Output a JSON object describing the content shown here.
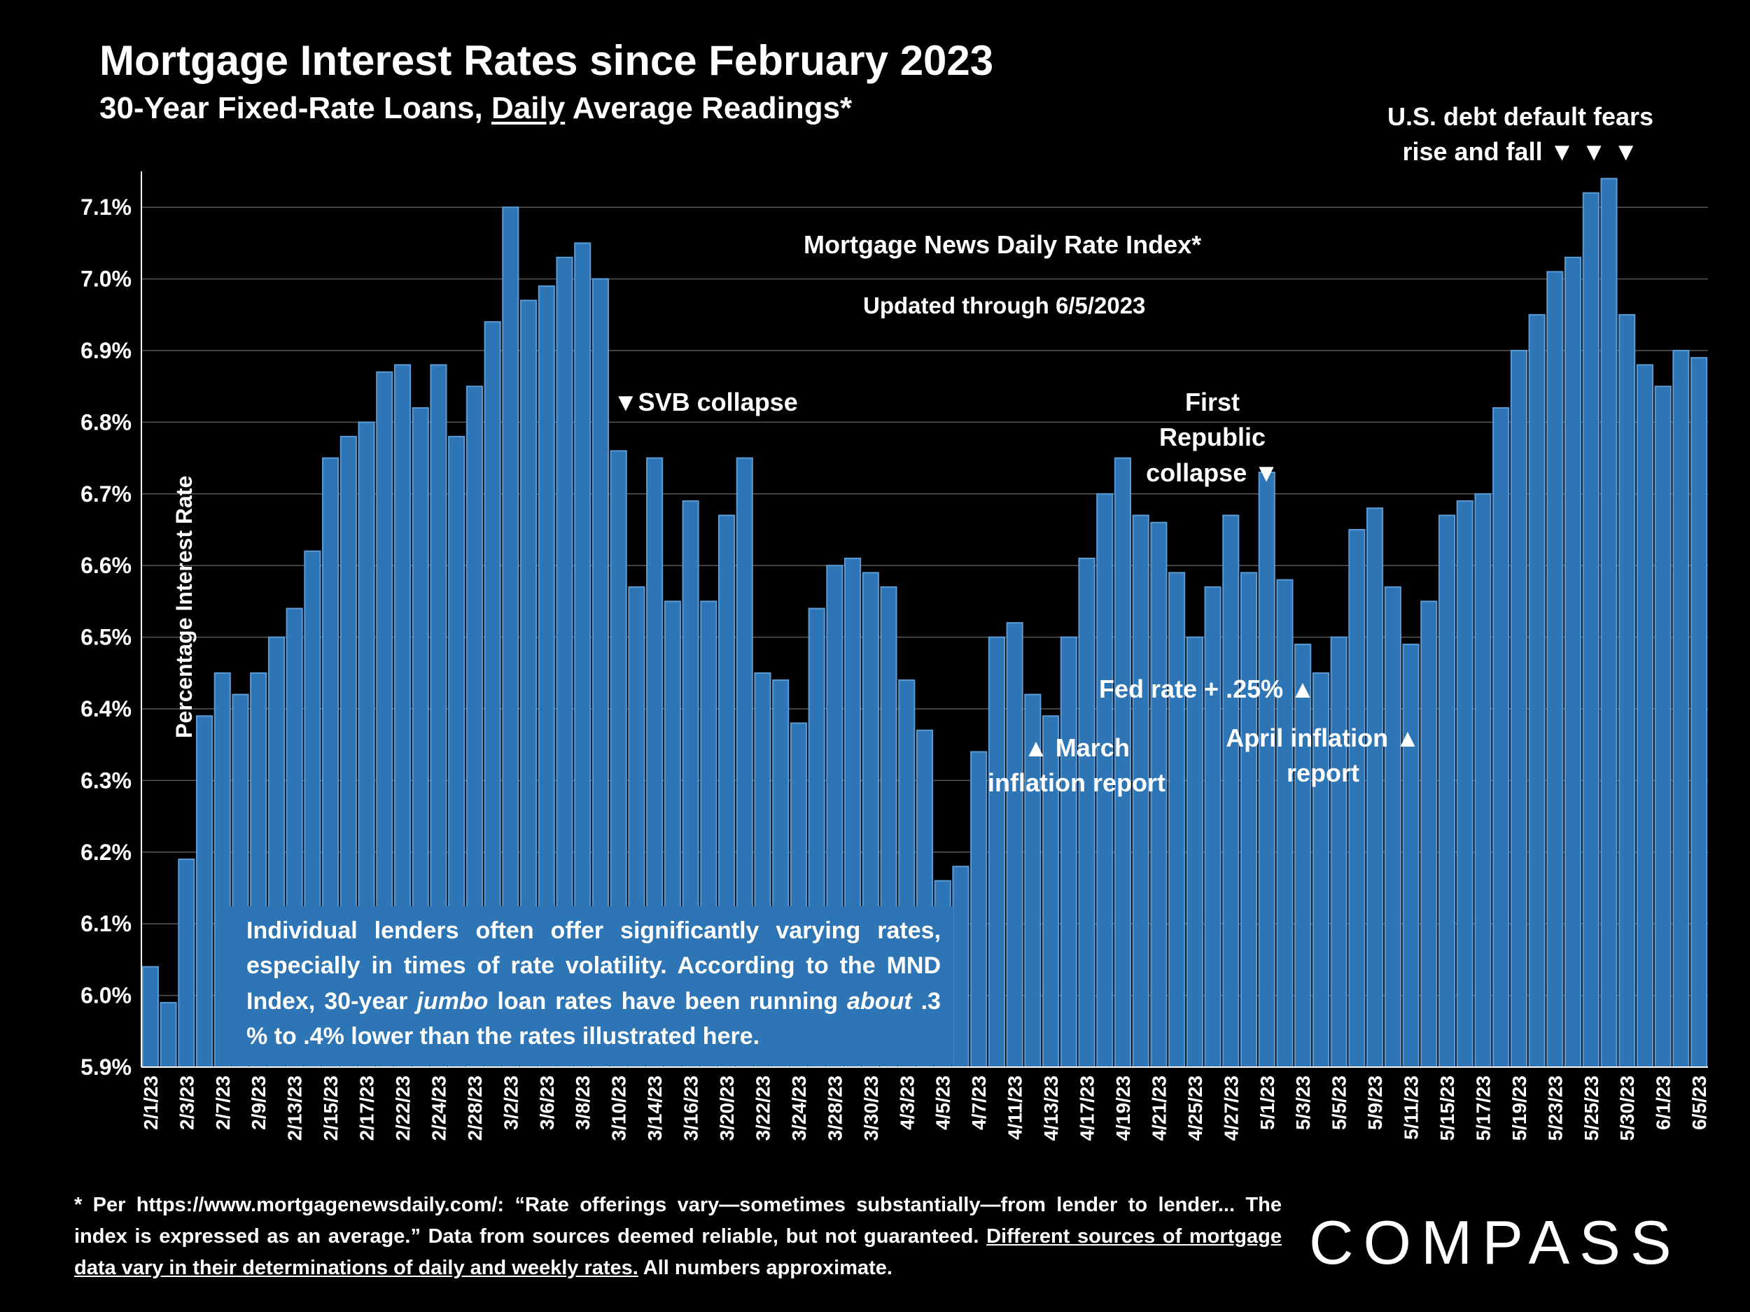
{
  "header": {
    "title": "Mortgage Interest Rates since February 2023",
    "subtitle_pre": "30-Year Fixed-Rate Loans, ",
    "subtitle_underlined": "Daily",
    "subtitle_post": " Average Readings*"
  },
  "annotations": {
    "index_name": "Mortgage News Daily Rate Index*",
    "updated": "Updated through 6/5/2023",
    "svb": "▼SVB collapse",
    "first_republic_line1": "First Republic",
    "first_republic_line2": "collapse ▼",
    "debt_line1": "U.S. debt default fears",
    "debt_line2": "rise and fall ▼ ▼ ▼",
    "march_line1": "▲ March",
    "march_line2": "inflation report",
    "fed": "Fed rate + .25% ▲",
    "april_line1": "April inflation ▲",
    "april_line2": "report"
  },
  "note": {
    "part1": "Individual lenders often offer significantly varying rates, especially in times of rate volatility. According to the MND Index, 30-year ",
    "italic1": "jumbo",
    "part2": " loan rates have been running ",
    "italic2": "about",
    "part3": " .3 % to .4% lower than the rates illustrated here."
  },
  "footer": {
    "text": "* Per https://www.mortgagenewsdaily.com/: “Rate offerings vary—sometimes substantially—from lender to lender... The index is expressed as an average.” Data from sources deemed reliable, but not guaranteed. ",
    "underlined": "Different sources of mortgage data vary in their determinations of daily and weekly rates.",
    "tail": " All numbers approximate."
  },
  "logo": "COMPASS",
  "colors": {
    "bar": "#2e75b6",
    "bar_edge": "#5b9bd5",
    "background": "#000000",
    "grid": "#595959"
  },
  "chart_data": {
    "type": "bar",
    "ylabel": "Percentage Interest  Rate",
    "ylim": [
      5.9,
      7.15
    ],
    "yticks": [
      5.9,
      6.0,
      6.1,
      6.2,
      6.3,
      6.4,
      6.5,
      6.6,
      6.7,
      6.8,
      6.9,
      7.0,
      7.1
    ],
    "ytick_labels": [
      "5.9%",
      "6.0%",
      "6.1%",
      "6.2%",
      "6.3%",
      "6.4%",
      "6.5%",
      "6.6%",
      "6.7%",
      "6.8%",
      "6.9%",
      "7.0%",
      "7.1%"
    ],
    "grid": true,
    "x_labels_shown": [
      "2/1/23",
      "2/3/23",
      "2/7/23",
      "2/9/23",
      "2/13/23",
      "2/15/23",
      "2/17/23",
      "2/22/23",
      "2/24/23",
      "2/28/23",
      "3/2/23",
      "3/6/23",
      "3/8/23",
      "3/10/23",
      "3/14/23",
      "3/16/23",
      "3/20/23",
      "3/22/23",
      "3/24/23",
      "3/28/23",
      "3/30/23",
      "4/3/23",
      "4/5/23",
      "4/7/23",
      "4/11/23",
      "4/13/23",
      "4/17/23",
      "4/19/23",
      "4/21/23",
      "4/25/23",
      "4/27/23",
      "5/1/23",
      "5/3/23",
      "5/5/23",
      "5/9/23",
      "5/11/23",
      "5/15/23",
      "5/17/23",
      "5/19/23",
      "5/23/23",
      "5/25/23",
      "5/30/23",
      "6/1/23",
      "6/5/23"
    ],
    "values": [
      6.04,
      5.99,
      6.19,
      6.39,
      6.45,
      6.42,
      6.45,
      6.5,
      6.54,
      6.62,
      6.75,
      6.78,
      6.8,
      6.87,
      6.88,
      6.82,
      6.88,
      6.78,
      6.85,
      6.94,
      7.1,
      6.97,
      6.99,
      7.03,
      7.05,
      7.0,
      6.76,
      6.57,
      6.75,
      6.55,
      6.69,
      6.55,
      6.67,
      6.75,
      6.45,
      6.44,
      6.38,
      6.54,
      6.6,
      6.61,
      6.59,
      6.57,
      6.44,
      6.37,
      6.16,
      6.18,
      6.34,
      6.5,
      6.52,
      6.42,
      6.39,
      6.5,
      6.61,
      6.7,
      6.75,
      6.67,
      6.66,
      6.59,
      6.5,
      6.57,
      6.67,
      6.59,
      6.73,
      6.58,
      6.49,
      6.45,
      6.5,
      6.65,
      6.68,
      6.57,
      6.49,
      6.55,
      6.67,
      6.69,
      6.7,
      6.82,
      6.9,
      6.95,
      7.01,
      7.03,
      7.12,
      7.14,
      6.95,
      6.88,
      6.85,
      6.9,
      6.89
    ]
  }
}
